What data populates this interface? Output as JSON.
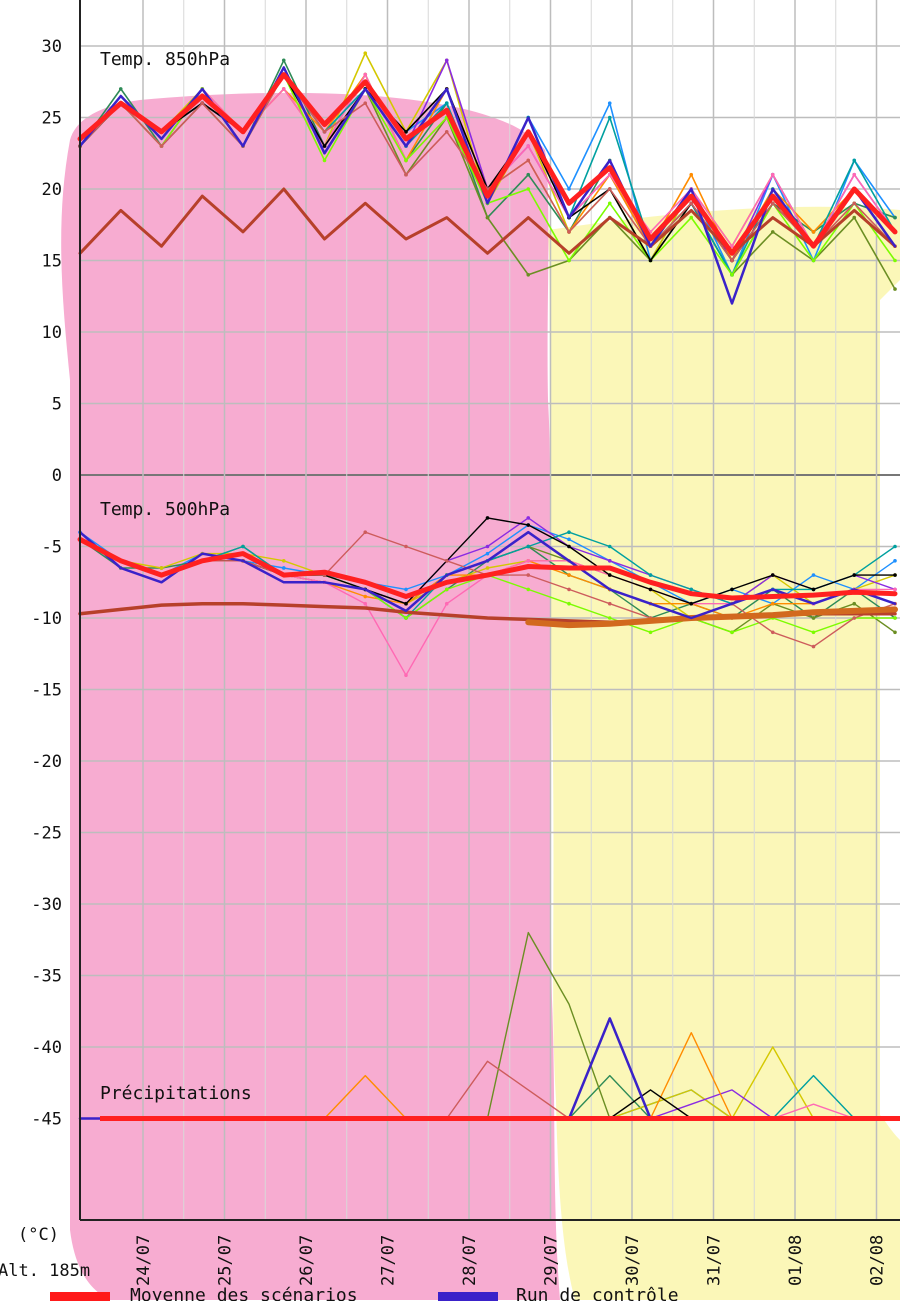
{
  "chart_data": {
    "type": "line",
    "ylabel": "(°C)",
    "altitude_label": "Alt. 185m",
    "ylim": [
      -55,
      32
    ],
    "yticks": [
      30,
      25,
      20,
      15,
      10,
      5,
      0,
      -5,
      -10,
      -15,
      -20,
      -25,
      -30,
      -35,
      -40,
      -45
    ],
    "x_dates": [
      "24/07",
      "25/07",
      "26/07",
      "27/07",
      "28/07",
      "29/07",
      "30/07",
      "31/07",
      "01/08",
      "02/08"
    ],
    "grid": true,
    "shaded_regions": [
      {
        "from": "start",
        "to": "29/07",
        "color": "#f7a8cf"
      },
      {
        "from": "29/07",
        "to": "end",
        "color": "#fbf7b4"
      }
    ],
    "annotations": [
      "Temp. 850hPa",
      "Temp. 500hPa",
      "Précipitations"
    ],
    "legend": [
      {
        "name": "Moyenne des scénarios",
        "color": "#ff1a1a"
      },
      {
        "name": "Run de contrôle",
        "color": "#3a22c9"
      }
    ],
    "series": [
      {
        "name": "Moyenne des scénarios",
        "color": "#ff2020",
        "t850": [
          23.5,
          26,
          24,
          26.5,
          24,
          28,
          24.5,
          27.5,
          23.5,
          25.5,
          19.5,
          24,
          19,
          21.5,
          16.5,
          19.5,
          15.5,
          19.5,
          16,
          20,
          17
        ],
        "t500": [
          -4.5,
          -6,
          -7,
          -6,
          -5.5,
          -7,
          -6.8,
          -7.5,
          -8.5,
          -7.5,
          -7,
          -6.4,
          -6.5,
          -6.5,
          -7.5,
          -8.3,
          -8.6,
          -8.5,
          -8.4,
          -8.2,
          -8.3
        ],
        "precip": [
          -45,
          -45,
          -45,
          -45,
          -45,
          -45,
          -45,
          -45,
          -45,
          -45,
          -45,
          -45,
          -45,
          -45,
          -45,
          -45,
          -45,
          -45,
          -45,
          -45,
          -45
        ]
      },
      {
        "name": "Run de contrôle",
        "color": "#3a22c9",
        "t850": [
          23,
          26.5,
          23.5,
          27,
          23,
          28.5,
          22.5,
          27,
          23,
          27,
          19,
          25,
          18,
          22,
          16,
          20,
          12,
          20,
          16,
          20,
          16
        ],
        "t500": [
          -4,
          -6.5,
          -7.5,
          -5.5,
          -6,
          -7.5,
          -7.5,
          -8,
          -9.5,
          -7,
          -6,
          -4,
          -6,
          -8,
          -9,
          -10,
          -9,
          -8,
          -9,
          -8,
          -9
        ],
        "precip": [
          -45,
          -45,
          -45,
          -45,
          -45,
          -45,
          -45,
          -45,
          -45,
          -45,
          -45,
          -45,
          -45,
          -38,
          -45,
          -45,
          -45,
          -45,
          -45,
          -45,
          -45
        ]
      },
      {
        "name": "",
        "color": "#b7402a",
        "t850": [
          15.5,
          18.5,
          16,
          19.5,
          17,
          20,
          16.5,
          19,
          16.5,
          18,
          15.5,
          18,
          15.5,
          18,
          16,
          18.5,
          15.5,
          18,
          16,
          18.5,
          16
        ],
        "t500": [
          -9.7,
          -9.4,
          -9.1,
          -9,
          -9,
          -9.1,
          -9.2,
          -9.3,
          -9.6,
          -9.8,
          -10,
          -10.1,
          -10.2,
          -10.3,
          -10.2,
          -10,
          -9.9,
          -9.8,
          -9.7,
          -9.7,
          -9.7
        ],
        "precip": []
      },
      {
        "name": "",
        "color": "#d2691e",
        "t850": [],
        "t500": [
          null,
          null,
          null,
          null,
          null,
          null,
          null,
          null,
          null,
          null,
          null,
          -10.3,
          -10.5,
          -10.4,
          -10.2,
          -10,
          -9.9,
          -9.8,
          -9.6,
          -9.5,
          -9.4
        ],
        "precip": []
      },
      {
        "name": "",
        "color": "#1e90ff",
        "t850": [
          23,
          26,
          24,
          26,
          24,
          28,
          24,
          27,
          24,
          26,
          19,
          25,
          20,
          26,
          15,
          20,
          14,
          21,
          15,
          22,
          18
        ],
        "t500": [
          -4,
          -6,
          -7,
          -5.5,
          -6,
          -6.5,
          -7,
          -7.5,
          -8,
          -7,
          -5.5,
          -3.5,
          -4.5,
          -6,
          -7.5,
          -9,
          -8,
          -9,
          -7,
          -8,
          -6
        ],
        "precip": [
          -45,
          -45,
          -45,
          -45,
          -45,
          -45,
          -45,
          -45,
          -45,
          -45,
          -45,
          -45,
          -45,
          -45,
          -44,
          -43,
          -45,
          -45,
          -45,
          -45,
          -45
        ]
      },
      {
        "name": "",
        "color": "#2e8b57",
        "t850": [
          23,
          27,
          23,
          27,
          23,
          29,
          23,
          28,
          22,
          26,
          18,
          21,
          17,
          22,
          16,
          19,
          14,
          19,
          17,
          19,
          18
        ],
        "t500": [
          -4.5,
          -6.5,
          -6.5,
          -6,
          -6,
          -7,
          -7.5,
          -8,
          -10,
          -8,
          -6,
          -5,
          -7,
          -8,
          -10,
          -9,
          -10,
          -8,
          -10,
          -8,
          -10
        ],
        "precip": [
          -45,
          -45,
          -45,
          -45,
          -45,
          -45,
          -45,
          -45,
          -45,
          -45,
          -45,
          -45,
          -45,
          -42,
          -45,
          -45,
          -45,
          -45,
          -45,
          -45,
          -45
        ]
      },
      {
        "name": "",
        "color": "#d4c800",
        "t850": [
          23,
          26,
          24,
          27,
          24,
          27,
          23,
          29.5,
          24,
          29,
          19,
          24,
          17,
          20,
          15,
          20,
          16,
          21,
          16,
          20,
          16
        ],
        "t500": [
          -4.5,
          -6,
          -6.5,
          -5.5,
          -5.5,
          -6,
          -7,
          -8,
          -9,
          -7.5,
          -6.5,
          -6,
          -6,
          -7,
          -8,
          -10,
          -9,
          -7,
          -9,
          -8,
          -7
        ],
        "precip": [
          -45,
          -45,
          -45,
          -45,
          -45,
          -45,
          -45,
          -45,
          -45,
          -45,
          -45,
          -45,
          -45,
          -45,
          -44,
          -43,
          -45,
          -40,
          -45,
          -45,
          -45
        ]
      },
      {
        "name": "",
        "color": "#6b8e23",
        "t850": [
          23,
          26,
          23,
          26,
          23,
          28,
          23,
          27,
          21,
          25,
          18,
          14,
          15,
          18,
          15,
          19,
          14,
          17,
          15,
          18,
          13
        ],
        "t500": [
          -4.5,
          -6,
          -7,
          -6,
          -5,
          -7,
          -7,
          -8,
          -9,
          -7,
          -6,
          -5,
          -6,
          -8,
          -9,
          -10,
          -11,
          -9,
          -10,
          -9,
          -11
        ],
        "precip": [
          -45,
          -45,
          -45,
          -45,
          -45,
          -45,
          -45,
          -45,
          -45,
          -45,
          -45,
          -32,
          -37,
          -45,
          -45,
          -45,
          -45,
          -45,
          -45,
          -45,
          -45
        ]
      },
      {
        "name": "",
        "color": "#8a2be2",
        "t850": [
          23,
          26,
          23,
          27,
          23,
          28,
          23,
          27,
          23,
          29,
          20,
          23,
          18,
          21,
          16,
          20,
          15,
          21,
          16,
          21,
          17
        ],
        "t500": [
          -4.5,
          -6,
          -7,
          -6,
          -5.5,
          -7,
          -7,
          -8,
          -9,
          -6,
          -5,
          -3,
          -5,
          -6,
          -7,
          -8,
          -9,
          -7,
          -8,
          -7,
          -8
        ],
        "precip": [
          -45,
          -45,
          -45,
          -45,
          -45,
          -45,
          -45,
          -45,
          -45,
          -45,
          -45,
          -45,
          -45,
          -45,
          -45,
          -44,
          -43,
          -45,
          -45,
          -45,
          -45
        ]
      },
      {
        "name": "",
        "color": "#ff8c00",
        "t850": [
          23,
          26,
          24,
          26,
          24,
          27,
          24,
          28,
          22,
          27,
          20,
          22,
          17,
          21,
          16,
          21,
          15,
          20,
          17,
          20,
          17
        ],
        "t500": [
          -4.5,
          -6,
          -7,
          -6,
          -6,
          -7,
          -7.5,
          -8.5,
          -9,
          -7,
          -7,
          -6,
          -7,
          -8,
          -9,
          -9,
          -10,
          -9,
          -9,
          -8,
          -9
        ],
        "precip": [
          -45,
          -45,
          -45,
          -45,
          -45,
          -45,
          -45,
          -42,
          -45,
          -45,
          -45,
          -45,
          -45,
          -45,
          -45,
          -39,
          -45,
          -45,
          -45,
          -45,
          -45
        ]
      },
      {
        "name": "",
        "color": "#ff69b4",
        "t850": [
          23,
          26,
          23,
          27,
          24,
          27,
          23,
          28,
          22,
          25,
          20,
          23,
          18,
          21,
          17,
          20,
          16,
          21,
          16,
          21,
          17
        ],
        "t500": [
          -4.5,
          -6,
          -7,
          -6,
          -6,
          -7,
          -7.5,
          -9,
          -14,
          -9,
          -7,
          -6,
          -6,
          -7,
          -8,
          -9,
          -9,
          -8,
          -9,
          -8,
          -8
        ],
        "precip": [
          -45,
          -45,
          -45,
          -45,
          -45,
          -45,
          -45,
          -45,
          -45,
          -45,
          -45,
          -45,
          -45,
          -45,
          -45,
          -45,
          -45,
          -45,
          -44,
          -45,
          -45
        ]
      },
      {
        "name": "",
        "color": "#00a0a0",
        "t850": [
          23,
          26,
          24,
          26,
          24,
          28,
          24,
          27,
          23,
          26,
          19,
          25,
          18,
          25,
          16,
          19,
          14,
          20,
          16,
          22,
          17
        ],
        "t500": [
          -4.5,
          -6,
          -7,
          -6,
          -5,
          -7,
          -7,
          -8,
          -10,
          -7,
          -6,
          -5,
          -4,
          -5,
          -7,
          -8,
          -9,
          -8,
          -8,
          -7,
          -5
        ],
        "precip": [
          -45,
          -45,
          -45,
          -45,
          -45,
          -45,
          -45,
          -45,
          -45,
          -45,
          -45,
          -45,
          -45,
          -45,
          -45,
          -45,
          -45,
          -45,
          -42,
          -45,
          -45
        ]
      },
      {
        "name": "",
        "color": "#7cfc00",
        "t850": [
          23,
          26,
          23,
          27,
          23,
          28,
          22,
          27,
          22,
          25,
          19,
          20,
          15,
          19,
          15,
          18,
          14,
          19,
          15,
          19,
          15
        ],
        "t500": [
          -4.5,
          -6,
          -7,
          -6,
          -6,
          -7,
          -7,
          -8,
          -10,
          -8,
          -7,
          -8,
          -9,
          -10,
          -11,
          -10,
          -11,
          -10,
          -11,
          -10,
          -10
        ],
        "precip": [
          -45,
          -45,
          -45,
          -45,
          -45,
          -45,
          -45,
          -45,
          -45,
          -45,
          -45,
          -45,
          -45,
          -45,
          -45,
          -45,
          -45,
          -45,
          -45,
          -45,
          -45
        ]
      },
      {
        "name": "",
        "color": "#000000",
        "t850": [
          23,
          26,
          24,
          26,
          24,
          28,
          23,
          27,
          24,
          27,
          20,
          24,
          18,
          20,
          15,
          19,
          15,
          19,
          16,
          20,
          17
        ],
        "t500": [
          -4.5,
          -6,
          -7,
          -6,
          -6,
          -7,
          -7,
          -8,
          -9,
          -6,
          -3,
          -3.5,
          -5,
          -7,
          -8,
          -9,
          -8,
          -7,
          -8,
          -7,
          -7
        ],
        "precip": [
          -45,
          -45,
          -45,
          -45,
          -45,
          -45,
          -45,
          -45,
          -45,
          -45,
          -45,
          -45,
          -45,
          -45,
          -43,
          -45,
          -45,
          -45,
          -45,
          -45,
          -45
        ]
      },
      {
        "name": "",
        "color": "#cd5c5c",
        "t850": [
          23,
          26,
          23,
          26,
          23,
          28,
          24,
          26,
          21,
          24,
          20,
          22,
          17,
          20,
          16,
          19,
          15,
          19,
          16,
          19,
          16
        ],
        "t500": [
          -4.5,
          -6,
          -7,
          -6,
          -6,
          -7,
          -7,
          -4,
          -5,
          -6,
          -7,
          -7,
          -8,
          -9,
          -10,
          -10,
          -9,
          -11,
          -12,
          -10,
          -9
        ],
        "precip": [
          -45,
          -45,
          -45,
          -45,
          -45,
          -45,
          -45,
          -45,
          -45,
          -45,
          -41,
          -43,
          -45,
          -45,
          -45,
          -45,
          -45,
          -45,
          -45,
          -45,
          -45
        ]
      }
    ]
  }
}
